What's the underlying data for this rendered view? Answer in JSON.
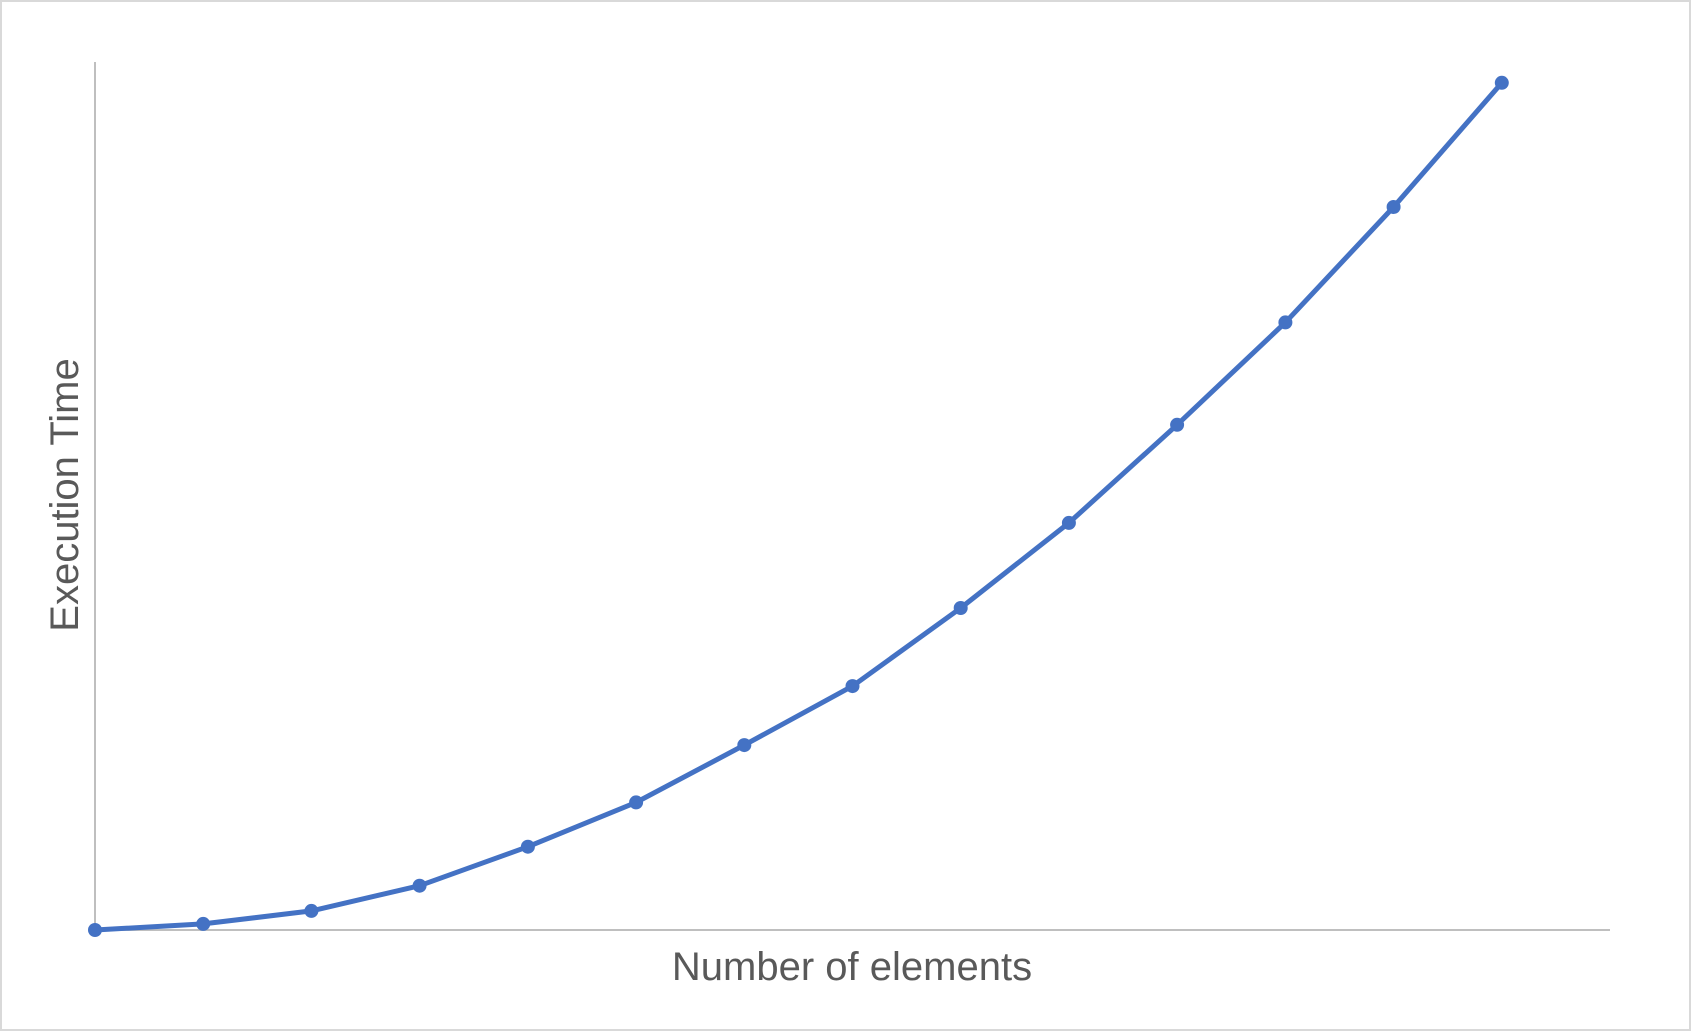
{
  "chart_data": {
    "type": "line",
    "title": "",
    "xlabel": "Number of elements",
    "ylabel": "Execution Time",
    "x": [
      0,
      1,
      2,
      3,
      4,
      5,
      6,
      7,
      8,
      9,
      10,
      11,
      12,
      13
    ],
    "series": [
      {
        "name": "",
        "color": "#4472c4",
        "values": [
          0,
          0.7,
          2.2,
          5.1,
          9.6,
          14.7,
          21.3,
          28.1,
          37.1,
          46.9,
          58.2,
          70.0,
          83.3,
          97.6
        ]
      }
    ],
    "xlim": [
      0,
      14
    ],
    "ylim": [
      0,
      100
    ],
    "grid": false,
    "legend": "none",
    "markers": true,
    "smooth": true,
    "tick_labels": "none",
    "colors": {
      "series": "#4472c4",
      "axis": "#bfbfbf",
      "text": "#595959",
      "border": "#d9d9d9"
    }
  }
}
